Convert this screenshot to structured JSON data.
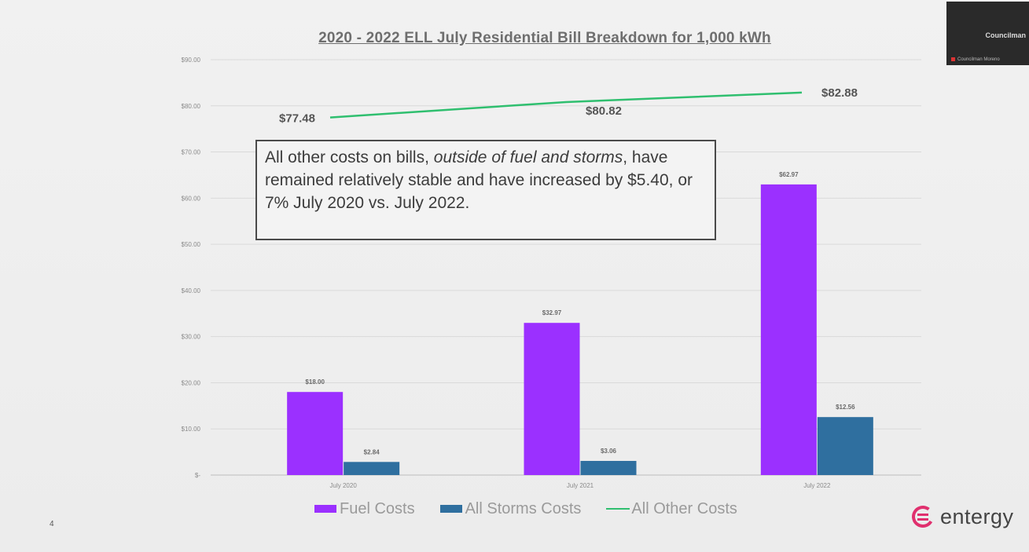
{
  "slide": {
    "title": "2020 - 2022 ELL July Residential Bill Breakdown for 1,000 kWh",
    "callout": {
      "before": "All other costs on bills, ",
      "italic": "outside of fuel and storms",
      "after": ", have remained relatively stable and have increased by $5.40, or 7% July 2020 vs. July 2022."
    },
    "page_number": "4",
    "logo_text": "entergy"
  },
  "video_tile": {
    "label": "Councilman",
    "name": "Councilman Moreno"
  },
  "colors": {
    "fuel": "#9b30ff",
    "storms": "#2f6f9f",
    "other": "#2fbf6f",
    "logo_accent": "#e0306e"
  },
  "chart_data": {
    "type": "bar",
    "categories": [
      "July 2020",
      "July 2021",
      "July 2022"
    ],
    "series": [
      {
        "name": "Fuel Costs",
        "type": "bar",
        "values": [
          18.0,
          32.97,
          62.97
        ],
        "labels": [
          "$18.00",
          "$32.97",
          "$62.97"
        ]
      },
      {
        "name": "All Storms Costs",
        "type": "bar",
        "values": [
          2.84,
          3.06,
          12.56
        ],
        "labels": [
          "$2.84",
          "$3.06",
          "$12.56"
        ]
      },
      {
        "name": "All Other Costs",
        "type": "line",
        "values": [
          77.48,
          80.82,
          82.88
        ],
        "labels": [
          "$77.48",
          "$80.82",
          "$82.88"
        ]
      }
    ],
    "y_ticks": [
      0,
      10,
      20,
      30,
      40,
      50,
      60,
      70,
      80,
      90
    ],
    "y_tick_labels": [
      "$-",
      "$10.00",
      "$20.00",
      "$30.00",
      "$40.00",
      "$50.00",
      "$60.00",
      "$70.00",
      "$80.00",
      "$90.00"
    ],
    "ylim": [
      0,
      90
    ],
    "grid": true,
    "legend_position": "bottom"
  }
}
